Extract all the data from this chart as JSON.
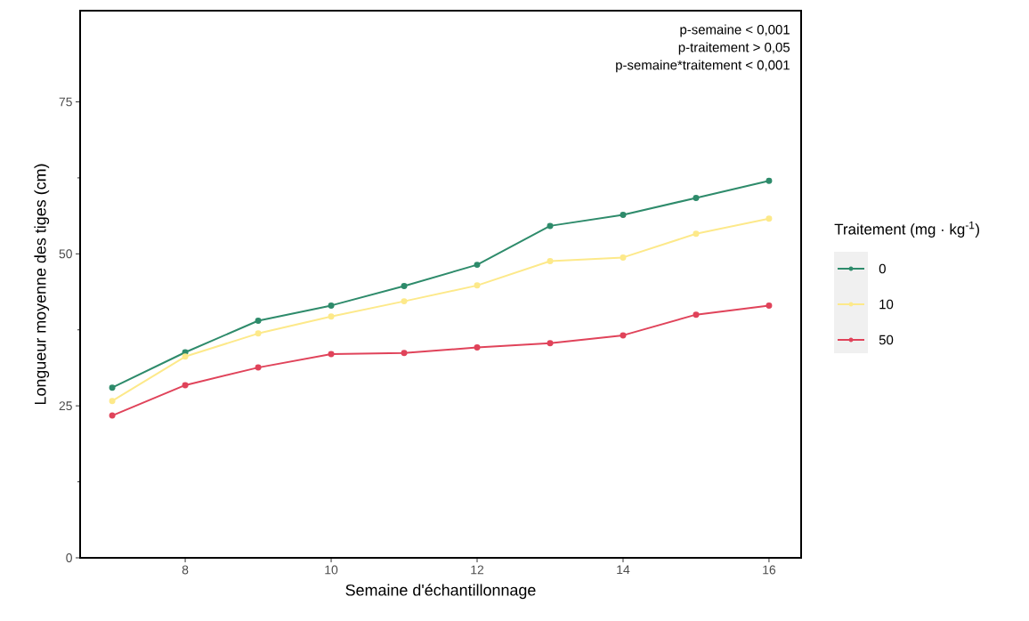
{
  "chart_data": {
    "type": "line",
    "xlabel": "Semaine d'échantillonnage",
    "ylabel": "Longueur moyenne des tiges (cm)",
    "legend_title": "Traitement (mg · kg$^{-1}$)",
    "x": [
      7,
      8,
      9,
      10,
      11,
      12,
      13,
      14,
      15,
      16
    ],
    "series": [
      {
        "name": "0",
        "color": "#2e8b6b",
        "values": [
          28.0,
          33.8,
          39.0,
          41.5,
          44.7,
          48.2,
          54.6,
          56.4,
          59.2,
          62.0
        ]
      },
      {
        "name": "10",
        "color": "#fde98a",
        "values": [
          25.8,
          33.1,
          36.9,
          39.7,
          42.2,
          44.8,
          48.8,
          49.4,
          53.3,
          55.8
        ]
      },
      {
        "name": "50",
        "color": "#e0435a",
        "values": [
          23.4,
          28.4,
          31.3,
          33.5,
          33.7,
          34.6,
          35.3,
          36.6,
          40.0,
          41.5
        ]
      }
    ],
    "xlim": [
      6.56,
      16.44
    ],
    "xticks": [
      8,
      10,
      12,
      14,
      16
    ],
    "ylim": [
      0,
      90
    ],
    "yticks": [
      0,
      25,
      50,
      75
    ],
    "annotations": [
      "p-semaine < 0,001",
      "p-traitement > 0,05",
      "p-semaine*traitement < 0,001"
    ],
    "grid": false,
    "legend": "right",
    "marker": "circle",
    "line_style": "solid"
  }
}
